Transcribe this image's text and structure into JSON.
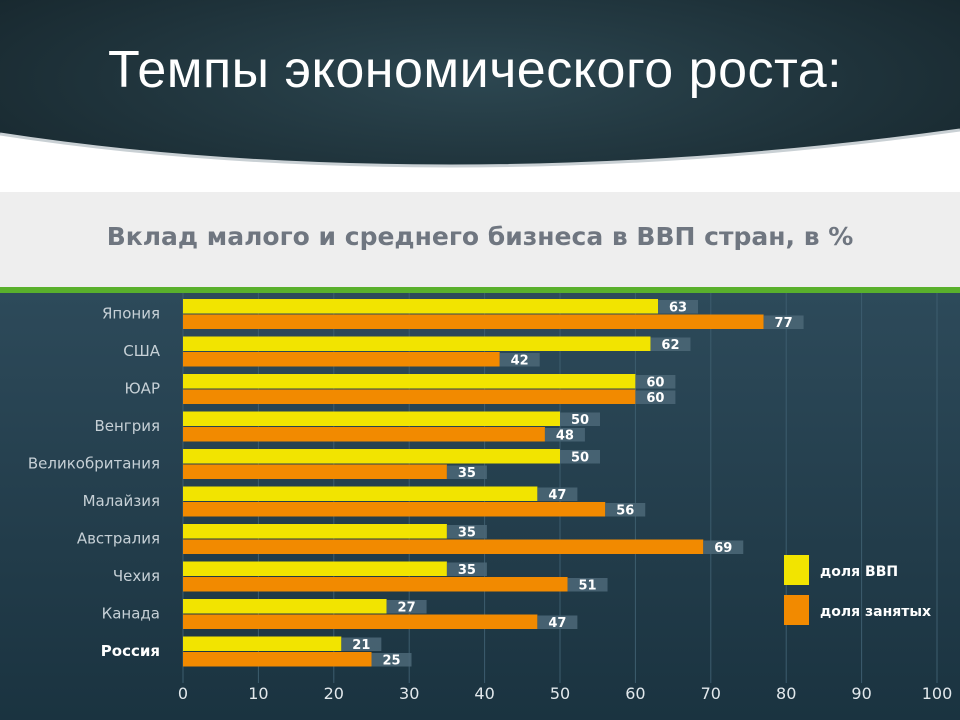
{
  "slide": {
    "title": "Темпы экономического роста:"
  },
  "chart_data": {
    "type": "bar",
    "orientation": "horizontal",
    "title": "Вклад малого и среднего бизнеса в ВВП стран, в %",
    "categories": [
      "Япония",
      "США",
      "ЮАР",
      "Венгрия",
      "Великобритания",
      "Малайзия",
      "Австралия",
      "Чехия",
      "Канада",
      "Россия"
    ],
    "highlight_category": "Россия",
    "series": [
      {
        "name": "доля ВВП",
        "color": "#f2e400",
        "values": [
          63,
          62,
          60,
          50,
          50,
          47,
          35,
          35,
          27,
          21
        ]
      },
      {
        "name": "доля занятых",
        "color": "#f28a00",
        "values": [
          77,
          42,
          60,
          48,
          35,
          56,
          69,
          51,
          47,
          25
        ]
      }
    ],
    "xlim": [
      0,
      100
    ],
    "xticks": [
      0,
      10,
      20,
      30,
      40,
      50,
      60,
      70,
      80,
      90,
      100
    ],
    "grid": true,
    "legend_position": "right"
  }
}
